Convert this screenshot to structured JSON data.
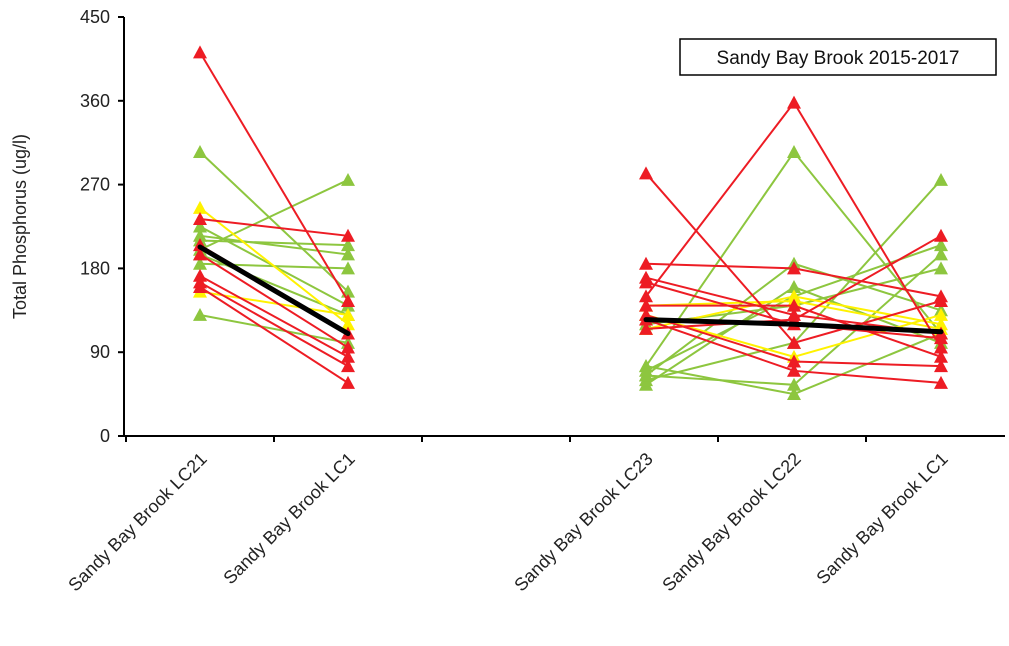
{
  "chart_data": {
    "type": "line",
    "title": "Sandy Bay Brook 2015-2017",
    "ylabel": "Total Phosphorus (ug/l)",
    "xlabel": "",
    "ylim": [
      0,
      450
    ],
    "yticks": [
      0,
      90,
      180,
      270,
      360,
      450
    ],
    "categories": [
      "Sandy Bay Brook LC21",
      "Sandy Bay Brook LC1",
      "",
      "Sandy Bay Brook LC23",
      "Sandy Bay Brook LC22",
      "Sandy Bay Brook LC1"
    ],
    "legend_position": "top-right",
    "grid": false,
    "colors": {
      "green": "#8DC63F",
      "yellow": "#FFF200",
      "red": "#ED1C24",
      "mean": "#000000"
    },
    "groups": [
      {
        "categories": [
          0,
          1
        ],
        "series": [
          {
            "color": "green",
            "values": [
              305,
              155
            ]
          },
          {
            "color": "green",
            "values": [
              225,
              140
            ]
          },
          {
            "color": "green",
            "values": [
              215,
              195
            ]
          },
          {
            "color": "green",
            "values": [
              200,
              275
            ]
          },
          {
            "color": "green",
            "values": [
              195,
              130
            ]
          },
          {
            "color": "green",
            "values": [
              185,
              180
            ]
          },
          {
            "color": "green",
            "values": [
              130,
              100
            ]
          },
          {
            "color": "green",
            "values": [
              210,
              205
            ]
          },
          {
            "color": "yellow",
            "values": [
              245,
              120
            ]
          },
          {
            "color": "yellow",
            "values": [
              155,
              130
            ]
          },
          {
            "color": "red",
            "values": [
              412,
              145
            ]
          },
          {
            "color": "red",
            "values": [
              233,
              215
            ]
          },
          {
            "color": "red",
            "values": [
              205,
              110
            ]
          },
          {
            "color": "red",
            "values": [
              195,
              95
            ]
          },
          {
            "color": "red",
            "values": [
              172,
              85
            ]
          },
          {
            "color": "red",
            "values": [
              165,
              75
            ]
          },
          {
            "color": "red",
            "values": [
              160,
              57
            ]
          }
        ],
        "mean": [
          203,
          110
        ]
      },
      {
        "categories": [
          3,
          4,
          5
        ],
        "series": [
          {
            "color": "green",
            "values": [
              75,
              305,
              110
            ]
          },
          {
            "color": "green",
            "values": [
              65,
              185,
              135
            ]
          },
          {
            "color": "green",
            "values": [
              55,
              160,
              100
            ]
          },
          {
            "color": "green",
            "values": [
              60,
              100,
              275
            ]
          },
          {
            "color": "green",
            "values": [
              75,
              45,
              110
            ]
          },
          {
            "color": "green",
            "values": [
              65,
              55,
              195
            ]
          },
          {
            "color": "green",
            "values": [
              120,
              140,
              180
            ]
          },
          {
            "color": "green",
            "values": [
              70,
              150,
              205
            ]
          },
          {
            "color": "yellow",
            "values": [
              115,
              150,
              120
            ]
          },
          {
            "color": "yellow",
            "values": [
              130,
              85,
              130
            ]
          },
          {
            "color": "yellow",
            "values": [
              140,
              145,
              115
            ]
          },
          {
            "color": "red",
            "values": [
              282,
              100,
              145
            ]
          },
          {
            "color": "red",
            "values": [
              185,
              180,
              150
            ]
          },
          {
            "color": "red",
            "values": [
              170,
              130,
              110
            ]
          },
          {
            "color": "red",
            "values": [
              165,
              120,
              105
            ]
          },
          {
            "color": "red",
            "values": [
              150,
              358,
              95
            ]
          },
          {
            "color": "red",
            "values": [
              140,
              140,
              85
            ]
          },
          {
            "color": "red",
            "values": [
              115,
              125,
              215
            ]
          },
          {
            "color": "red",
            "values": [
              130,
              80,
              75
            ]
          },
          {
            "color": "red",
            "values": [
              125,
              70,
              57
            ]
          }
        ],
        "mean": [
          125,
          120,
          112
        ]
      }
    ]
  }
}
